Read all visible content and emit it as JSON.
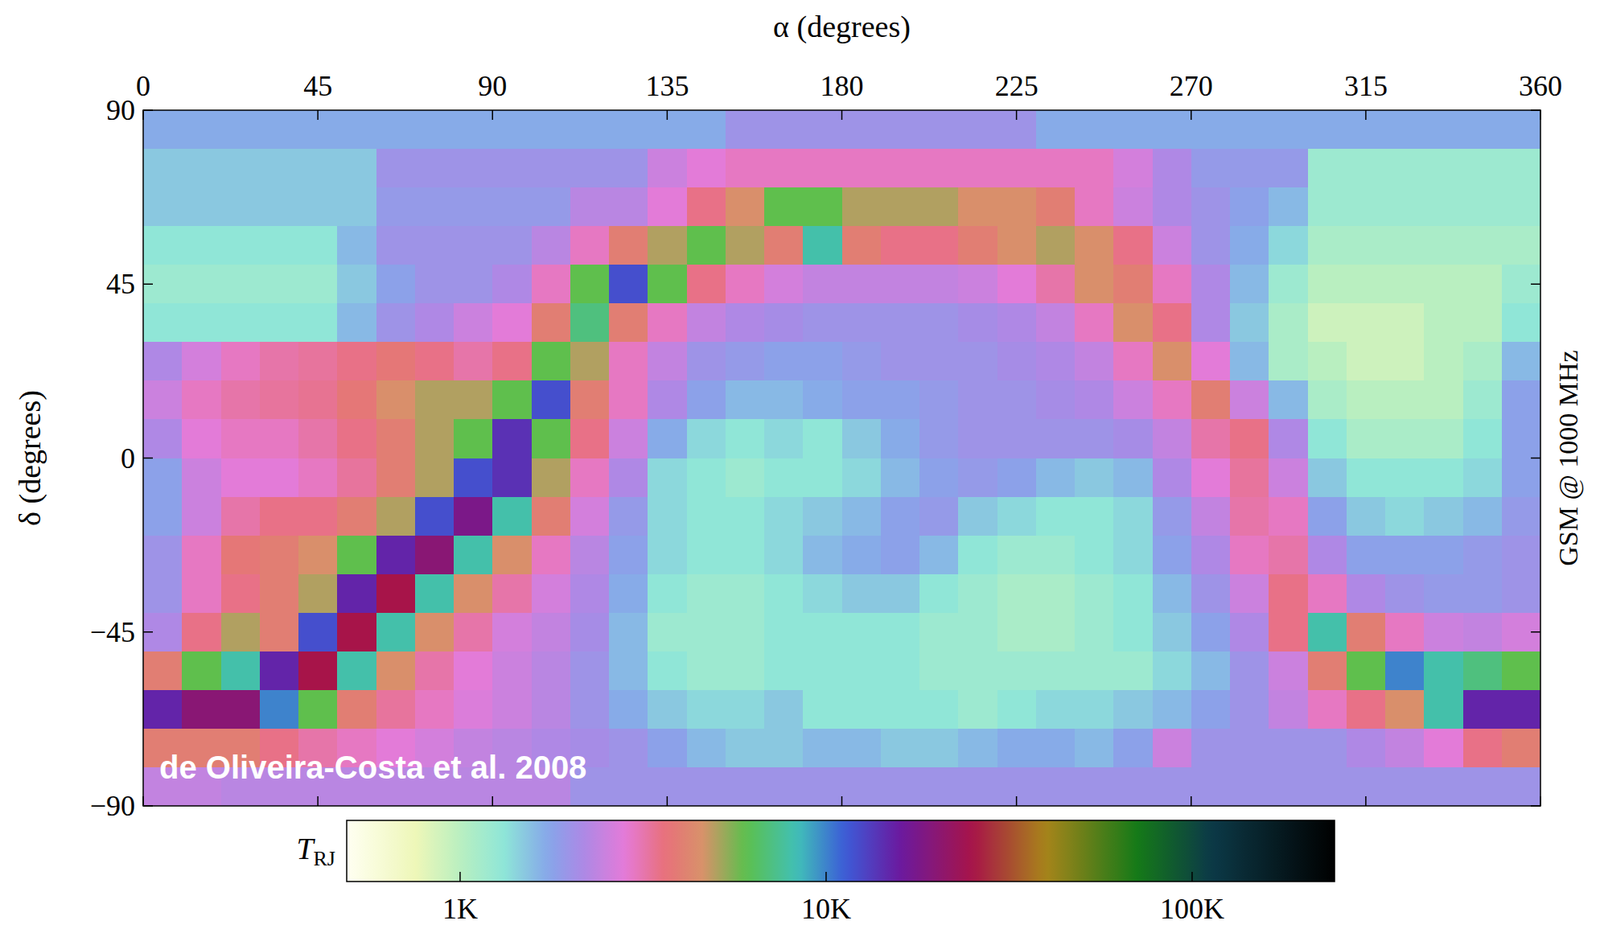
{
  "chart_data": {
    "type": "heatmap",
    "x_label": "α (degrees)",
    "y_label": "δ (degrees)",
    "side_label": "GSM @ 1000 MHz",
    "annotation": "de Oliveira-Costa et al. 2008",
    "xlim": [
      0,
      360
    ],
    "ylim": [
      -90,
      90
    ],
    "xticks": [
      0,
      45,
      90,
      135,
      180,
      225,
      270,
      315,
      360
    ],
    "yticks": [
      {
        "value": -90,
        "label": "−90"
      },
      {
        "value": -45,
        "label": "−45"
      },
      0,
      45,
      90
    ],
    "x": [
      5,
      15,
      25,
      35,
      45,
      55,
      65,
      75,
      85,
      95,
      105,
      115,
      125,
      135,
      145,
      155,
      165,
      175,
      185,
      195,
      205,
      215,
      225,
      235,
      245,
      255,
      265,
      275,
      285,
      295,
      305,
      315,
      325,
      335,
      345,
      355
    ],
    "y": [
      85,
      75,
      65,
      55,
      45,
      35,
      25,
      15,
      5,
      -5,
      -15,
      -25,
      -35,
      -45,
      -55,
      -65,
      -75,
      -85
    ],
    "cells": [
      [
        1.7,
        1.7,
        1.7,
        1.7,
        1.7,
        1.7,
        1.7,
        1.7,
        1.7,
        1.7,
        1.7,
        1.7,
        1.7,
        1.7,
        1.7,
        2.0,
        2.0,
        2.0,
        2.0,
        2.0,
        2.0,
        2.0,
        2.0,
        1.7,
        1.7,
        1.7,
        1.7,
        1.7,
        1.7,
        1.7,
        1.7,
        1.7,
        1.7,
        1.7,
        1.7,
        1.7
      ],
      [
        1.5,
        1.5,
        1.5,
        1.5,
        1.5,
        1.5,
        2.0,
        2.0,
        2.0,
        2.0,
        2.0,
        2.0,
        2.0,
        2.5,
        2.8,
        3.0,
        3.0,
        3.0,
        3.0,
        3.0,
        3.0,
        3.0,
        3.0,
        3.0,
        3.0,
        2.6,
        2.2,
        1.9,
        1.9,
        1.9,
        1.2,
        1.2,
        1.2,
        1.2,
        1.2,
        1.2
      ],
      [
        1.5,
        1.5,
        1.5,
        1.5,
        1.5,
        1.5,
        1.9,
        1.9,
        1.9,
        1.9,
        1.9,
        2.3,
        2.3,
        2.8,
        3.5,
        4.5,
        6,
        6,
        5,
        5,
        5,
        4.5,
        4.5,
        4,
        3,
        2.5,
        2.2,
        2,
        1.8,
        1.6,
        1.2,
        1.2,
        1.2,
        1.2,
        1.2,
        1.2
      ],
      [
        1.3,
        1.3,
        1.3,
        1.3,
        1.3,
        1.6,
        2.0,
        2.0,
        2.0,
        2.0,
        2.3,
        3,
        4,
        5,
        6,
        5,
        4,
        8,
        4,
        3.5,
        3.5,
        4,
        4.5,
        5,
        4.5,
        3.5,
        2.5,
        2,
        1.7,
        1.4,
        1.1,
        1.1,
        1.1,
        1.1,
        1.1,
        1.1
      ],
      [
        1.2,
        1.2,
        1.2,
        1.2,
        1.2,
        1.5,
        1.8,
        2.0,
        2.0,
        2.2,
        3,
        6,
        12,
        6,
        3.5,
        3,
        2.6,
        2.4,
        2.4,
        2.4,
        2.4,
        2.5,
        2.8,
        3.2,
        4.5,
        4,
        3,
        2.2,
        1.6,
        1.2,
        1.0,
        1.0,
        1.0,
        1.0,
        1.0,
        1.2
      ],
      [
        1.3,
        1.3,
        1.3,
        1.3,
        1.3,
        1.6,
        2.0,
        2.2,
        2.5,
        2.8,
        4,
        7,
        4,
        3,
        2.4,
        2.2,
        2.1,
        2.0,
        2.0,
        2.0,
        2.0,
        2.1,
        2.2,
        2.4,
        3,
        4.5,
        3.5,
        2.2,
        1.5,
        1.1,
        0.9,
        0.9,
        0.9,
        1.0,
        1.0,
        1.3
      ],
      [
        2.2,
        2.6,
        3.0,
        3.2,
        3.3,
        3.5,
        3.8,
        3.5,
        3.2,
        3.5,
        6,
        5,
        3,
        2.4,
        2.0,
        1.9,
        1.8,
        1.8,
        1.9,
        2.0,
        2.0,
        2.0,
        2.1,
        2.2,
        2.4,
        3,
        4.5,
        2.8,
        1.6,
        1.1,
        1.0,
        0.9,
        0.9,
        1.0,
        1.1,
        1.6
      ],
      [
        2.5,
        3.0,
        3.2,
        3.3,
        3.4,
        3.8,
        4.5,
        5,
        5,
        6,
        12,
        4,
        3,
        2.2,
        1.8,
        1.6,
        1.6,
        1.7,
        1.8,
        1.8,
        1.9,
        2.0,
        2.0,
        2.1,
        2.2,
        2.5,
        3,
        4,
        2.5,
        1.6,
        1.1,
        1.0,
        1.0,
        1.0,
        1.2,
        1.8
      ],
      [
        2.2,
        2.8,
        3.0,
        3.0,
        3.2,
        3.5,
        4,
        5,
        6,
        14,
        6,
        3.5,
        2.5,
        1.7,
        1.4,
        1.3,
        1.4,
        1.3,
        1.5,
        1.7,
        1.9,
        2.0,
        2.0,
        2.0,
        2.0,
        2.1,
        2.4,
        3.2,
        3.5,
        2.2,
        1.3,
        1.1,
        1.1,
        1.1,
        1.3,
        1.8
      ],
      [
        1.8,
        2.5,
        2.8,
        2.8,
        3.0,
        3.3,
        4,
        5,
        12,
        14,
        5,
        3,
        2.2,
        1.4,
        1.3,
        1.2,
        1.3,
        1.3,
        1.4,
        1.6,
        1.8,
        1.9,
        1.8,
        1.6,
        1.5,
        1.6,
        2.2,
        2.8,
        3.3,
        2.5,
        1.5,
        1.3,
        1.3,
        1.3,
        1.4,
        1.8
      ],
      [
        1.8,
        2.5,
        3.2,
        3.5,
        3.5,
        4,
        5,
        12,
        18,
        8,
        4,
        2.6,
        1.9,
        1.4,
        1.3,
        1.3,
        1.4,
        1.5,
        1.6,
        1.8,
        1.9,
        1.5,
        1.4,
        1.3,
        1.3,
        1.4,
        1.9,
        2.4,
        3.2,
        3,
        1.8,
        1.5,
        1.4,
        1.5,
        1.6,
        1.9
      ],
      [
        2.0,
        3.0,
        3.8,
        4,
        4.5,
        6,
        15,
        20,
        8,
        4.5,
        3,
        2.3,
        1.8,
        1.4,
        1.3,
        1.3,
        1.4,
        1.6,
        1.7,
        1.8,
        1.6,
        1.3,
        1.2,
        1.2,
        1.3,
        1.4,
        1.8,
        2.2,
        3,
        3.2,
        2.2,
        1.8,
        1.8,
        1.8,
        1.9,
        2.0
      ],
      [
        2.0,
        3.0,
        3.5,
        4,
        5,
        15,
        25,
        8,
        4.5,
        3.2,
        2.6,
        2.2,
        1.7,
        1.3,
        1.2,
        1.2,
        1.3,
        1.4,
        1.5,
        1.5,
        1.3,
        1.2,
        1.1,
        1.1,
        1.2,
        1.3,
        1.6,
        2.0,
        2.5,
        3.5,
        3,
        2.2,
        2.0,
        1.9,
        1.9,
        2.0
      ],
      [
        2.2,
        3.5,
        5,
        4,
        12,
        25,
        8,
        4.5,
        3.2,
        2.6,
        2.4,
        2.1,
        1.6,
        1.2,
        1.2,
        1.2,
        1.3,
        1.3,
        1.3,
        1.3,
        1.2,
        1.2,
        1.1,
        1.1,
        1.2,
        1.3,
        1.5,
        1.8,
        2.2,
        3.5,
        8,
        4,
        3,
        2.5,
        2.4,
        2.6
      ],
      [
        4,
        6,
        8,
        15,
        25,
        8,
        4.5,
        3.2,
        2.8,
        2.5,
        2.3,
        2.0,
        1.6,
        1.3,
        1.2,
        1.2,
        1.3,
        1.3,
        1.3,
        1.3,
        1.2,
        1.2,
        1.2,
        1.2,
        1.2,
        1.2,
        1.4,
        1.6,
        2.0,
        2.5,
        4,
        6,
        10,
        8,
        7,
        6
      ],
      [
        15,
        20,
        20,
        10,
        6,
        4,
        3.3,
        3,
        2.7,
        2.5,
        2.3,
        2.0,
        1.7,
        1.5,
        1.4,
        1.4,
        1.5,
        1.3,
        1.3,
        1.3,
        1.3,
        1.2,
        1.3,
        1.4,
        1.4,
        1.5,
        1.6,
        1.8,
        2.0,
        2.4,
        3,
        3.5,
        4.5,
        8,
        15,
        15
      ],
      [
        4,
        4,
        4,
        3.5,
        3.2,
        3,
        2.8,
        2.6,
        2.4,
        2.3,
        2.2,
        2.1,
        2.0,
        1.8,
        1.6,
        1.5,
        1.5,
        1.6,
        1.6,
        1.5,
        1.5,
        1.6,
        1.7,
        1.7,
        1.6,
        1.8,
        2.5,
        2.0,
        2.0,
        2.0,
        2.0,
        2.2,
        2.4,
        2.8,
        3.5,
        4
      ],
      [
        2.4,
        2.4,
        2.3,
        2.3,
        2.3,
        2.3,
        2.3,
        2.3,
        2.3,
        2.3,
        2.3,
        2.0,
        2.0,
        2.0,
        2.0,
        2.0,
        2.0,
        2.0,
        2.0,
        2.0,
        2.0,
        2.0,
        2.0,
        2.0,
        2.0,
        2.0,
        2.0,
        2.0,
        2.0,
        2.0,
        2.0,
        2.0,
        2.0,
        2.0,
        2.0,
        2.0
      ]
    ],
    "colorbar": {
      "title": "T",
      "title_sub": "RJ",
      "log": true,
      "range": [
        0.49,
        245
      ],
      "ticks": [
        {
          "value": 1,
          "label": "1K"
        },
        {
          "value": 10,
          "label": "10K"
        },
        {
          "value": 100,
          "label": "100K"
        }
      ]
    }
  }
}
